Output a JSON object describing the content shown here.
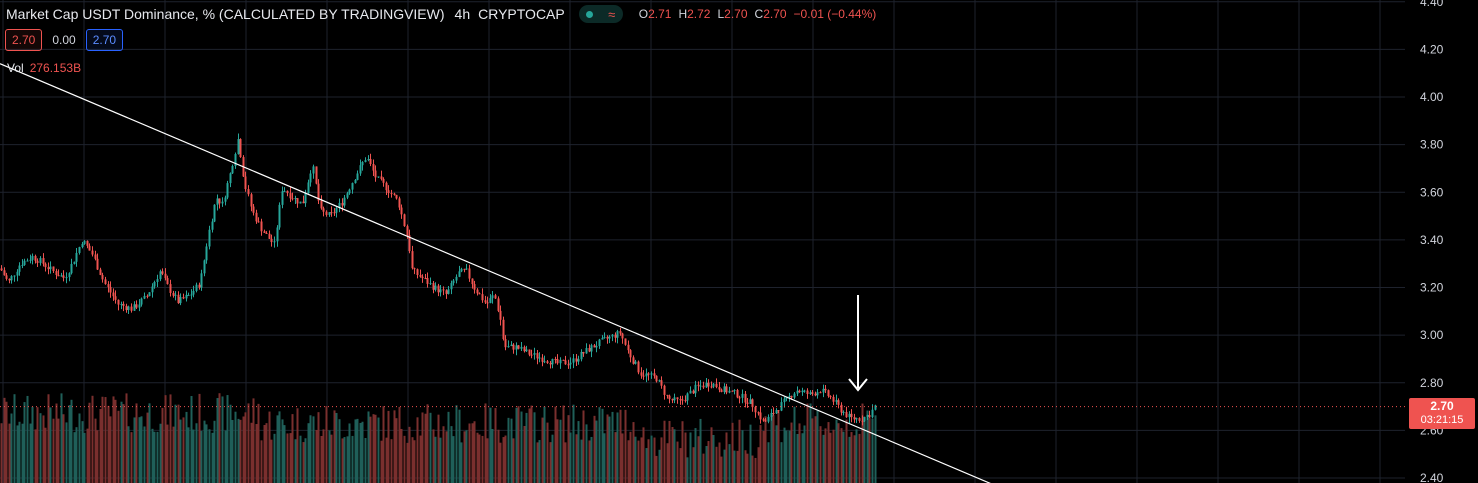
{
  "legend": {
    "title": "Market Cap USDT Dominance, % (CALCULATED BY TRADINGVIEW)",
    "interval": "4h",
    "exchange": "CRYPTOCAP",
    "o_label": "O",
    "o": "2.71",
    "h_label": "H",
    "h": "2.72",
    "l_label": "L",
    "l": "2.70",
    "c_label": "C",
    "c": "2.70",
    "change": "−0.01 (−0.44%)"
  },
  "quote_boxes": {
    "bid": "2.70",
    "spread": "0.00",
    "ask": "2.70"
  },
  "volume": {
    "label": "Vol",
    "value": "276.153B"
  },
  "price_badge": {
    "price": "2.70",
    "countdown": "03:21:15"
  },
  "colors": {
    "up": "#26a69a",
    "down": "#ef5350",
    "background": "#000000",
    "trendline": "#ffffff",
    "arrow": "#ffffff"
  },
  "chart_data": {
    "type": "candlestick",
    "y_axis": {
      "ticks": [
        "4.40",
        "4.20",
        "4.00",
        "3.80",
        "3.60",
        "3.40",
        "3.20",
        "3.00",
        "2.80",
        "2.60",
        "2.40"
      ],
      "ylim": [
        2.38,
        4.42
      ],
      "position": "right"
    },
    "grid": true,
    "last_price": 2.7,
    "close_path": [
      [
        0,
        3.28
      ],
      [
        8,
        3.22
      ],
      [
        20,
        3.3
      ],
      [
        32,
        3.33
      ],
      [
        40,
        3.31
      ],
      [
        52,
        3.27
      ],
      [
        64,
        3.24
      ],
      [
        72,
        3.3
      ],
      [
        82,
        3.4
      ],
      [
        92,
        3.34
      ],
      [
        104,
        3.22
      ],
      [
        118,
        3.13
      ],
      [
        132,
        3.11
      ],
      [
        146,
        3.16
      ],
      [
        160,
        3.27
      ],
      [
        168,
        3.2
      ],
      [
        178,
        3.14
      ],
      [
        190,
        3.17
      ],
      [
        200,
        3.22
      ],
      [
        208,
        3.42
      ],
      [
        216,
        3.58
      ],
      [
        222,
        3.55
      ],
      [
        230,
        3.68
      ],
      [
        238,
        3.83
      ],
      [
        244,
        3.64
      ],
      [
        252,
        3.52
      ],
      [
        262,
        3.44
      ],
      [
        274,
        3.38
      ],
      [
        282,
        3.62
      ],
      [
        292,
        3.58
      ],
      [
        302,
        3.55
      ],
      [
        312,
        3.72
      ],
      [
        320,
        3.52
      ],
      [
        330,
        3.5
      ],
      [
        342,
        3.56
      ],
      [
        354,
        3.66
      ],
      [
        366,
        3.75
      ],
      [
        376,
        3.66
      ],
      [
        386,
        3.62
      ],
      [
        398,
        3.56
      ],
      [
        408,
        3.4
      ],
      [
        412,
        3.27
      ],
      [
        422,
        3.24
      ],
      [
        434,
        3.2
      ],
      [
        446,
        3.17
      ],
      [
        458,
        3.26
      ],
      [
        466,
        3.27
      ],
      [
        474,
        3.2
      ],
      [
        486,
        3.13
      ],
      [
        494,
        3.17
      ],
      [
        500,
        3.07
      ],
      [
        504,
        2.95
      ],
      [
        516,
        2.95
      ],
      [
        530,
        2.92
      ],
      [
        544,
        2.9
      ],
      [
        558,
        2.88
      ],
      [
        572,
        2.89
      ],
      [
        588,
        2.94
      ],
      [
        604,
        2.98
      ],
      [
        620,
        3.01
      ],
      [
        628,
        2.93
      ],
      [
        640,
        2.84
      ],
      [
        656,
        2.82
      ],
      [
        668,
        2.73
      ],
      [
        680,
        2.72
      ],
      [
        696,
        2.78
      ],
      [
        710,
        2.8
      ],
      [
        724,
        2.77
      ],
      [
        738,
        2.75
      ],
      [
        752,
        2.71
      ],
      [
        764,
        2.63
      ],
      [
        774,
        2.68
      ],
      [
        784,
        2.72
      ],
      [
        796,
        2.77
      ],
      [
        810,
        2.75
      ],
      [
        820,
        2.77
      ],
      [
        830,
        2.74
      ],
      [
        840,
        2.69
      ],
      [
        850,
        2.65
      ],
      [
        862,
        2.65
      ],
      [
        870,
        2.67
      ],
      [
        876,
        2.71
      ]
    ],
    "trendline": {
      "from": [
        0,
        4.14
      ],
      "to": [
        1000,
        2.36
      ]
    },
    "annotation": "down-arrow"
  }
}
